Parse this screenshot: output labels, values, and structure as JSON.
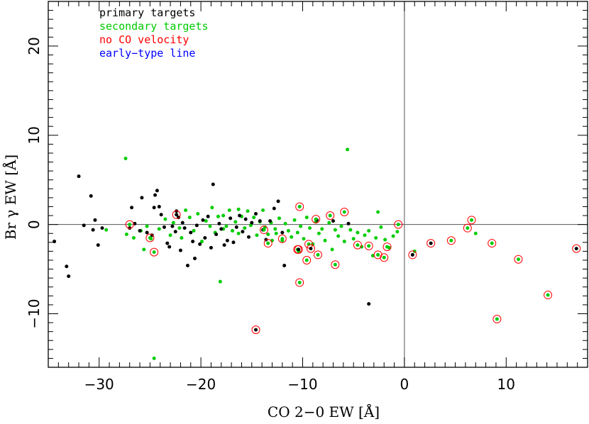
{
  "chart_data": {
    "type": "scatter",
    "xlabel": "CO 2−0 EW [Å]",
    "ylabel": "Br γ EW [Å]",
    "xlim": [
      -35,
      18
    ],
    "ylim": [
      -16,
      25
    ],
    "x_ticks": [
      -30,
      -20,
      -10,
      0,
      10
    ],
    "x_tick_labels": [
      "−30",
      "−20",
      "−10",
      "0",
      "10"
    ],
    "y_ticks": [
      -10,
      0,
      10,
      20
    ],
    "y_tick_labels": [
      "−10",
      "0",
      "10",
      "20"
    ],
    "reference_lines": {
      "x": 0,
      "y": 0
    },
    "grid": false,
    "legend_position": "top-left",
    "legend": [
      {
        "label": "primary targets",
        "color": "#000000"
      },
      {
        "label": "secondary targets",
        "color": "#00cc00"
      },
      {
        "label": "no CO velocity",
        "color": "#ff0000"
      },
      {
        "label": "early−type line",
        "color": "#0000ff"
      }
    ],
    "series": [
      {
        "name": "primary targets",
        "color": "#000000",
        "points": [
          [
            -34.4,
            -1.9
          ],
          [
            -33.2,
            -4.7
          ],
          [
            -33.0,
            -5.8
          ],
          [
            -32.0,
            5.4
          ],
          [
            -31.5,
            -0.1
          ],
          [
            -30.8,
            3.2
          ],
          [
            -30.6,
            -0.6
          ],
          [
            -30.4,
            0.5
          ],
          [
            -30.1,
            -2.3
          ],
          [
            -29.7,
            -0.4
          ],
          [
            -27.0,
            -0.4
          ],
          [
            -26.8,
            1.9
          ],
          [
            -26.5,
            0.1
          ],
          [
            -26.0,
            -0.7
          ],
          [
            -25.8,
            3.0
          ],
          [
            -25.3,
            -0.9
          ],
          [
            -24.8,
            -1.2
          ],
          [
            -24.6,
            1.9
          ],
          [
            -24.5,
            3.3
          ],
          [
            -24.3,
            3.8
          ],
          [
            -24.1,
            2.0
          ],
          [
            -23.9,
            1.1
          ],
          [
            -23.6,
            -0.3
          ],
          [
            -23.3,
            -2.1
          ],
          [
            -23.1,
            -2.5
          ],
          [
            -22.8,
            -0.2
          ],
          [
            -22.5,
            -0.8
          ],
          [
            -22.4,
            1.5
          ],
          [
            -22.2,
            0.8
          ],
          [
            -22.0,
            -2.9
          ],
          [
            -21.8,
            0.2
          ],
          [
            -21.6,
            -0.4
          ],
          [
            -21.3,
            -4.6
          ],
          [
            -21.0,
            -0.9
          ],
          [
            -20.8,
            -1.9
          ],
          [
            -20.6,
            -3.8
          ],
          [
            -20.4,
            -0.1
          ],
          [
            -20.1,
            -2.2
          ],
          [
            -19.8,
            0.5
          ],
          [
            -19.6,
            -1.5
          ],
          [
            -19.3,
            0.9
          ],
          [
            -19.0,
            -2.6
          ],
          [
            -18.8,
            4.5
          ],
          [
            -18.5,
            -1.1
          ],
          [
            -18.2,
            0.1
          ],
          [
            -18.0,
            -0.5
          ],
          [
            -17.7,
            -2.3
          ],
          [
            -17.4,
            -1.8
          ],
          [
            -17.1,
            0.7
          ],
          [
            -16.8,
            -2.0
          ],
          [
            -16.5,
            -0.3
          ],
          [
            -16.2,
            1.0
          ],
          [
            -15.9,
            -0.8
          ],
          [
            -15.6,
            0.6
          ],
          [
            -15.3,
            -1.4
          ],
          [
            -15.0,
            0.2
          ],
          [
            -14.6,
            1.2
          ],
          [
            -14.2,
            0.4
          ],
          [
            -13.9,
            -0.6
          ],
          [
            -13.6,
            -1.7
          ],
          [
            -13.2,
            0.4
          ],
          [
            -12.8,
            1.8
          ],
          [
            -12.4,
            2.6
          ],
          [
            -12.0,
            -0.9
          ],
          [
            -11.8,
            -4.6
          ],
          [
            -8.6,
            0.5
          ],
          [
            -7.0,
            0.4
          ],
          [
            -5.5,
            0.1
          ],
          [
            -3.5,
            -8.9
          ]
        ]
      },
      {
        "name": "secondary targets",
        "color": "#00cc00",
        "points": [
          [
            -29.3,
            -0.6
          ],
          [
            -27.3,
            -1.1
          ],
          [
            -26.6,
            -1.5
          ],
          [
            -25.9,
            -0.7
          ],
          [
            -25.6,
            -2.8
          ],
          [
            -25.3,
            -0.2
          ],
          [
            -24.9,
            -1.6
          ],
          [
            -24.6,
            -15.0
          ],
          [
            -24.1,
            -0.5
          ],
          [
            -23.5,
            0.6
          ],
          [
            -23.0,
            -1.2
          ],
          [
            -22.7,
            0.2
          ],
          [
            -22.1,
            -0.4
          ],
          [
            -21.9,
            -1.5
          ],
          [
            -21.5,
            1.6
          ],
          [
            -21.1,
            0.8
          ],
          [
            -20.7,
            -0.7
          ],
          [
            -20.3,
            1.2
          ],
          [
            -19.9,
            -1.9
          ],
          [
            -19.5,
            0.4
          ],
          [
            -19.1,
            -0.2
          ],
          [
            -18.9,
            1.9
          ],
          [
            -18.6,
            -0.9
          ],
          [
            -18.3,
            0.9
          ],
          [
            -18.1,
            -6.4
          ],
          [
            -17.8,
            1.0
          ],
          [
            -17.5,
            -0.2
          ],
          [
            -17.2,
            1.6
          ],
          [
            -16.9,
            -0.7
          ],
          [
            -16.6,
            0.3
          ],
          [
            -16.3,
            -1.0
          ],
          [
            -16.0,
            0.9
          ],
          [
            -15.7,
            -0.4
          ],
          [
            -15.4,
            1.5
          ],
          [
            -15.1,
            -0.1
          ],
          [
            -14.8,
            0.8
          ],
          [
            -14.5,
            -1.2
          ],
          [
            -14.2,
            0.3
          ],
          [
            -13.9,
            1.6
          ],
          [
            -13.7,
            -0.3
          ],
          [
            -13.4,
            -1.1
          ],
          [
            -13.1,
            0.2
          ],
          [
            -12.7,
            -0.5
          ],
          [
            -12.3,
            0.7
          ],
          [
            -12.0,
            -1.8
          ],
          [
            -11.7,
            0.1
          ],
          [
            -11.4,
            -0.7
          ],
          [
            -11.1,
            -1.4
          ],
          [
            -10.8,
            0.5
          ],
          [
            -10.5,
            -0.9
          ],
          [
            -10.2,
            -0.2
          ],
          [
            -9.9,
            -1.6
          ],
          [
            -9.6,
            0.8
          ],
          [
            -9.3,
            -0.4
          ],
          [
            -9.0,
            -2.2
          ],
          [
            -8.7,
            0.3
          ],
          [
            -8.4,
            -1.0
          ],
          [
            -8.1,
            -0.5
          ],
          [
            -7.8,
            -1.8
          ],
          [
            -7.4,
            0.2
          ],
          [
            -7.1,
            -2.8
          ],
          [
            -6.8,
            -0.6
          ],
          [
            -6.5,
            -1.3
          ],
          [
            -6.2,
            -0.2
          ],
          [
            -5.9,
            -1.9
          ],
          [
            -5.6,
            8.4
          ],
          [
            -5.3,
            -0.6
          ],
          [
            -5.0,
            -1.6
          ],
          [
            -4.6,
            -0.9
          ],
          [
            -4.2,
            -2.5
          ],
          [
            -3.9,
            -1.2
          ],
          [
            -3.5,
            -0.7
          ],
          [
            -3.1,
            -3.5
          ],
          [
            -2.8,
            -1.5
          ],
          [
            -2.6,
            1.4
          ],
          [
            -2.3,
            -0.3
          ],
          [
            -1.9,
            -1.7
          ],
          [
            -1.5,
            -2.6
          ],
          [
            -1.1,
            -1.3
          ],
          [
            -0.7,
            -0.8
          ],
          [
            1.0,
            -3.0
          ],
          [
            7.0,
            -1.0
          ],
          [
            -27.4,
            7.4
          ],
          [
            -17.8,
            -0.5
          ],
          [
            -16.3,
            1.7
          ],
          [
            -13.0,
            -1.8
          ],
          [
            -10.4,
            -3.0
          ],
          [
            -12.6,
            -1.0
          ]
        ]
      },
      {
        "name": "no CO velocity",
        "color": "#ff0000",
        "points": [
          [
            -27.0,
            0.0,
            "g"
          ],
          [
            -25.0,
            -1.5,
            "g"
          ],
          [
            -24.6,
            -3.1,
            "g"
          ],
          [
            -22.4,
            1.1,
            "k"
          ],
          [
            -14.6,
            -11.8,
            "k"
          ],
          [
            -13.8,
            -0.6,
            "g"
          ],
          [
            -13.4,
            -2.1,
            "g"
          ],
          [
            -12.0,
            -1.6,
            "g"
          ],
          [
            -10.5,
            -2.8,
            "g"
          ],
          [
            -10.4,
            -2.8,
            "k"
          ],
          [
            -10.3,
            2.0,
            "g"
          ],
          [
            -10.3,
            -6.5,
            "g"
          ],
          [
            -9.6,
            -4.0,
            "g"
          ],
          [
            -9.4,
            -2.2,
            "g"
          ],
          [
            -9.2,
            -2.7,
            "k"
          ],
          [
            -8.7,
            0.6,
            "g"
          ],
          [
            -8.5,
            -3.4,
            "g"
          ],
          [
            -7.3,
            1.0,
            "g"
          ],
          [
            -6.8,
            -4.5,
            "g"
          ],
          [
            -5.9,
            1.4,
            "g"
          ],
          [
            -4.6,
            -2.3,
            "g"
          ],
          [
            -3.5,
            -2.4,
            "g"
          ],
          [
            -2.6,
            -3.4,
            "g"
          ],
          [
            -2.0,
            -3.7,
            "g"
          ],
          [
            -1.7,
            -2.5,
            "g"
          ],
          [
            -0.6,
            0.0,
            "g"
          ],
          [
            0.8,
            -3.4,
            "k"
          ],
          [
            2.6,
            -2.1,
            "k"
          ],
          [
            4.6,
            -1.8,
            "g"
          ],
          [
            6.2,
            -0.4,
            "g"
          ],
          [
            6.6,
            0.5,
            "g"
          ],
          [
            8.6,
            -2.1,
            "g"
          ],
          [
            9.1,
            -10.6,
            "g"
          ],
          [
            11.2,
            -3.9,
            "g"
          ],
          [
            14.1,
            -7.9,
            "g"
          ],
          [
            16.9,
            -2.7,
            "k"
          ]
        ]
      }
    ]
  }
}
